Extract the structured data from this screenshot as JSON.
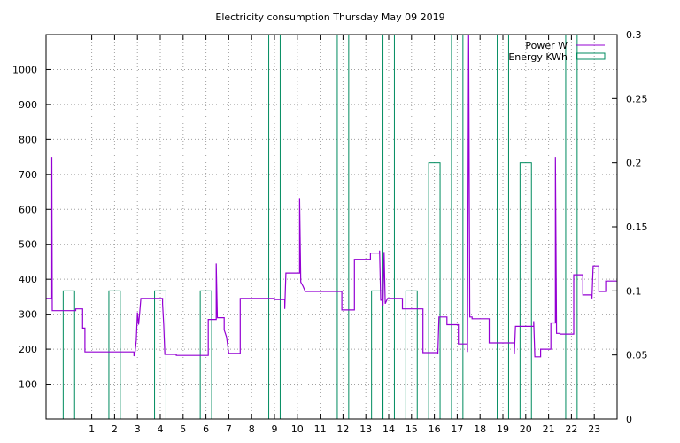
{
  "chart_data": {
    "type": "line",
    "title": "Electricity consumption Thursday May 09 2019",
    "xlabel": "",
    "ylabel": "",
    "y2label": "",
    "grid": true,
    "legend_position": "top-right",
    "xlim": [
      -1,
      24
    ],
    "ylim": [
      0,
      1100
    ],
    "y2lim": [
      0,
      0.3
    ],
    "x_ticks": [
      1,
      2,
      3,
      4,
      5,
      6,
      7,
      8,
      9,
      10,
      11,
      12,
      13,
      14,
      15,
      16,
      17,
      18,
      19,
      20,
      21,
      22,
      23
    ],
    "y_ticks": [
      100,
      200,
      300,
      400,
      500,
      600,
      700,
      800,
      900,
      1000
    ],
    "y2_ticks": [
      "0",
      "0.05",
      "0.1",
      "0.15",
      "0.2",
      "0.25",
      "0.3"
    ],
    "y2_tick_values": [
      0,
      0.05,
      0.1,
      0.15,
      0.2,
      0.25,
      0.3
    ],
    "series": [
      {
        "name": "Power W",
        "axis": "left",
        "style": "steps",
        "color": "#9400d3",
        "points": [
          [
            -1,
            345
          ],
          [
            -0.75,
            345
          ],
          [
            -0.75,
            750
          ],
          [
            -0.73,
            310
          ],
          [
            0.3,
            310
          ],
          [
            0.3,
            315
          ],
          [
            0.6,
            315
          ],
          [
            0.6,
            260
          ],
          [
            0.7,
            260
          ],
          [
            0.7,
            192
          ],
          [
            2.85,
            192
          ],
          [
            2.85,
            180
          ],
          [
            2.9,
            192
          ],
          [
            2.95,
            225
          ],
          [
            3.0,
            305
          ],
          [
            3.05,
            270
          ],
          [
            3.1,
            305
          ],
          [
            3.15,
            345
          ],
          [
            4.1,
            345
          ],
          [
            4.1,
            330
          ],
          [
            4.15,
            270
          ],
          [
            4.2,
            185
          ],
          [
            4.7,
            185
          ],
          [
            4.7,
            182
          ],
          [
            6.1,
            182
          ],
          [
            6.1,
            285
          ],
          [
            6.45,
            285
          ],
          [
            6.45,
            445
          ],
          [
            6.5,
            290
          ],
          [
            6.8,
            290
          ],
          [
            6.8,
            255
          ],
          [
            6.9,
            235
          ],
          [
            7.0,
            188
          ],
          [
            7.5,
            188
          ],
          [
            7.5,
            345
          ],
          [
            9.0,
            345
          ],
          [
            9.0,
            342
          ],
          [
            9.45,
            342
          ],
          [
            9.45,
            315
          ],
          [
            9.5,
            418
          ],
          [
            10.1,
            418
          ],
          [
            10.1,
            630
          ],
          [
            10.15,
            392
          ],
          [
            10.25,
            380
          ],
          [
            10.35,
            365
          ],
          [
            11.95,
            365
          ],
          [
            11.95,
            312
          ],
          [
            12.5,
            312
          ],
          [
            12.5,
            457
          ],
          [
            13.2,
            457
          ],
          [
            13.2,
            475
          ],
          [
            13.6,
            475
          ],
          [
            13.6,
            482
          ],
          [
            13.65,
            340
          ],
          [
            13.75,
            340
          ],
          [
            13.75,
            325
          ],
          [
            13.8,
            478
          ],
          [
            13.85,
            330
          ],
          [
            13.95,
            345
          ],
          [
            14.6,
            345
          ],
          [
            14.6,
            315
          ],
          [
            15.5,
            315
          ],
          [
            15.5,
            190
          ],
          [
            16.15,
            190
          ],
          [
            16.15,
            185
          ],
          [
            16.2,
            292
          ],
          [
            16.55,
            292
          ],
          [
            16.55,
            270
          ],
          [
            17.05,
            270
          ],
          [
            17.05,
            215
          ],
          [
            17.45,
            215
          ],
          [
            17.45,
            192
          ],
          [
            17.5,
            1100
          ],
          [
            17.55,
            292
          ],
          [
            17.65,
            292
          ],
          [
            17.65,
            287
          ],
          [
            18.4,
            287
          ],
          [
            18.4,
            218
          ],
          [
            19.5,
            218
          ],
          [
            19.5,
            185
          ],
          [
            19.55,
            265
          ],
          [
            20.35,
            265
          ],
          [
            20.35,
            280
          ],
          [
            20.4,
            178
          ],
          [
            20.65,
            178
          ],
          [
            20.65,
            200
          ],
          [
            21.1,
            200
          ],
          [
            21.1,
            275
          ],
          [
            21.3,
            275
          ],
          [
            21.3,
            750
          ],
          [
            21.35,
            245
          ],
          [
            21.5,
            245
          ],
          [
            21.5,
            243
          ],
          [
            22.1,
            243
          ],
          [
            22.1,
            413
          ],
          [
            22.5,
            413
          ],
          [
            22.5,
            355
          ],
          [
            22.9,
            355
          ],
          [
            22.9,
            345
          ],
          [
            22.95,
            438
          ],
          [
            23.2,
            438
          ],
          [
            23.2,
            365
          ],
          [
            23.5,
            365
          ],
          [
            23.5,
            395
          ],
          [
            24,
            395
          ]
        ]
      },
      {
        "name": "Energy KWh",
        "axis": "right",
        "style": "boxes",
        "color": "#008b5f",
        "boxes": [
          [
            -0.25,
            0.25,
            0.1
          ],
          [
            1.75,
            2.25,
            0.1
          ],
          [
            3.75,
            4.25,
            0.1
          ],
          [
            5.75,
            6.25,
            0.1
          ],
          [
            8.75,
            9.25,
            0.3
          ],
          [
            11.75,
            12.25,
            0.3
          ],
          [
            13.25,
            13.75,
            0.1
          ],
          [
            13.75,
            14.25,
            0.3
          ],
          [
            14.75,
            15.25,
            0.1
          ],
          [
            15.75,
            16.25,
            0.2
          ],
          [
            16.75,
            17.25,
            0.3
          ],
          [
            18.75,
            19.25,
            0.3
          ],
          [
            19.75,
            20.25,
            0.2
          ],
          [
            21.75,
            22.25,
            0.3
          ]
        ]
      }
    ]
  }
}
